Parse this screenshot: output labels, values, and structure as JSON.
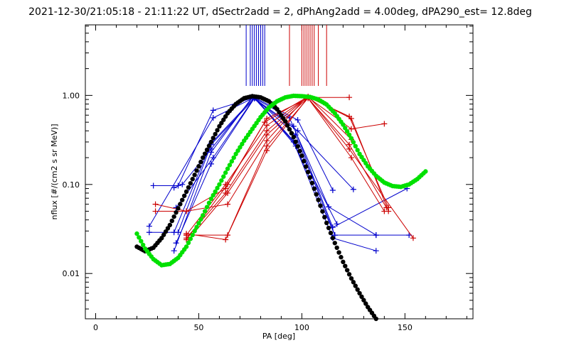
{
  "chart_data": {
    "type": "line",
    "title": "2021-12-30/21:05:18 - 21:11:22 UT, dSectr2add = 2, dPhAng2add = 4.00deg, dPA290_est=  12.8deg",
    "xlabel": "PA [deg]",
    "ylabel": "nflux [#/(cm2 s sr MeV)]",
    "xlim": [
      -5,
      183
    ],
    "ylim": [
      0.0031,
      6.2
    ],
    "yscale": "log",
    "x_ticks": [
      0,
      50,
      100,
      150
    ],
    "x_tick_labels": [
      "0",
      "50",
      "100",
      "150"
    ],
    "y_ticks": [
      0.01,
      0.1,
      1.0
    ],
    "y_tick_labels": [
      "0.01",
      "0.10",
      "1.00"
    ],
    "colors": {
      "blue": "#0000cc",
      "red": "#cc0000",
      "black": "#000000",
      "green": "#00e000"
    },
    "vertical_markers": {
      "blue": [
        73,
        75,
        76,
        77,
        78,
        79,
        80,
        81,
        82
      ],
      "red": [
        94,
        100,
        101,
        102,
        103,
        104,
        105,
        106,
        108,
        112
      ]
    },
    "series": [
      {
        "color": "blue",
        "style": "line+cross",
        "x": [
          26,
          57,
          77,
          98,
          115
        ],
        "y": [
          0.034,
          0.56,
          0.95,
          0.53,
          0.086
        ]
      },
      {
        "color": "blue",
        "style": "line+cross",
        "x": [
          28,
          40,
          57,
          77,
          97,
          117
        ],
        "y": [
          0.097,
          0.097,
          0.68,
          0.95,
          0.29,
          0.036
        ]
      },
      {
        "color": "blue",
        "style": "line+cross",
        "x": [
          26,
          38,
          56,
          77,
          97,
          116
        ],
        "y": [
          0.029,
          0.029,
          0.29,
          0.95,
          0.27,
          0.027
        ]
      },
      {
        "color": "blue",
        "style": "line+cross",
        "x": [
          38,
          42,
          56,
          76,
          98,
          125
        ],
        "y": [
          0.092,
          0.1,
          0.25,
          0.94,
          0.4,
          0.088
        ]
      },
      {
        "color": "blue",
        "style": "line+cross",
        "x": [
          39,
          57,
          77,
          97,
          116,
          136
        ],
        "y": [
          0.055,
          0.2,
          0.94,
          0.36,
          0.027,
          0.027
        ]
      },
      {
        "color": "blue",
        "style": "line+cross",
        "x": [
          39,
          56,
          77,
          96,
          115,
          136
        ],
        "y": [
          0.022,
          0.17,
          0.93,
          0.3,
          0.025,
          0.018
        ]
      },
      {
        "color": "blue",
        "style": "line+cross",
        "x": [
          38,
          56,
          76,
          94,
          113,
          136,
          152
        ],
        "y": [
          0.018,
          0.23,
          0.96,
          0.56,
          0.056,
          0.027,
          0.027
        ]
      },
      {
        "color": "blue",
        "style": "line+cross",
        "x": [
          40,
          56,
          77,
          96,
          115,
          151
        ],
        "y": [
          0.029,
          0.28,
          0.92,
          0.45,
          0.033,
          0.09
        ]
      },
      {
        "color": "red",
        "style": "line+cross",
        "x": [
          29,
          44,
          64,
          83,
          102,
          123
        ],
        "y": [
          0.06,
          0.05,
          0.06,
          0.31,
          0.95,
          0.95
        ]
      },
      {
        "color": "red",
        "style": "line+cross",
        "x": [
          29,
          44,
          63,
          82,
          103,
          124
        ],
        "y": [
          0.05,
          0.05,
          0.09,
          0.5,
          0.97,
          0.32
        ]
      },
      {
        "color": "red",
        "style": "line+cross",
        "x": [
          44,
          64,
          83,
          103,
          123,
          141
        ],
        "y": [
          0.027,
          0.027,
          0.27,
          0.93,
          0.28,
          0.055
        ]
      },
      {
        "color": "red",
        "style": "line+cross",
        "x": [
          44,
          63,
          83,
          103,
          124,
          142
        ],
        "y": [
          0.025,
          0.08,
          0.4,
          0.97,
          0.55,
          0.05
        ]
      },
      {
        "color": "red",
        "style": "line+cross",
        "x": [
          44,
          64,
          83,
          103,
          124,
          140
        ],
        "y": [
          0.024,
          0.1,
          0.55,
          0.93,
          0.2,
          0.05
        ]
      },
      {
        "color": "red",
        "style": "line+cross",
        "x": [
          44,
          63,
          83,
          103,
          124,
          140
        ],
        "y": [
          0.028,
          0.024,
          0.24,
          0.95,
          0.42,
          0.48
        ]
      },
      {
        "color": "red",
        "style": "line+cross",
        "x": [
          45,
          64,
          83,
          103,
          123,
          154
        ],
        "y": [
          0.024,
          0.08,
          0.36,
          0.94,
          0.25,
          0.025
        ]
      },
      {
        "color": "red",
        "style": "line+cross",
        "x": [
          44,
          63,
          83,
          103,
          123,
          142
        ],
        "y": [
          0.027,
          0.1,
          0.46,
          0.96,
          0.58,
          0.055
        ]
      },
      {
        "color": "black",
        "style": "dots",
        "x": [
          20,
          24,
          28,
          32,
          36,
          40,
          44,
          48,
          52,
          56,
          60,
          64,
          68,
          72,
          76,
          80,
          84,
          88,
          92,
          96,
          100,
          104,
          108,
          112,
          116,
          120,
          124,
          128,
          132,
          136
        ],
        "y": [
          0.02,
          0.0178,
          0.0195,
          0.025,
          0.035,
          0.054,
          0.083,
          0.128,
          0.2,
          0.3,
          0.45,
          0.63,
          0.8,
          0.93,
          0.98,
          0.95,
          0.86,
          0.7,
          0.51,
          0.34,
          0.21,
          0.12,
          0.067,
          0.037,
          0.022,
          0.0135,
          0.0088,
          0.006,
          0.0042,
          0.0031
        ]
      },
      {
        "color": "green",
        "style": "dots",
        "x": [
          20,
          24,
          28,
          32,
          36,
          40,
          44,
          48,
          52,
          56,
          60,
          64,
          68,
          72,
          76,
          80,
          84,
          88,
          92,
          96,
          100,
          104,
          108,
          112,
          116,
          120,
          124,
          128,
          132,
          136,
          140,
          144,
          148,
          152,
          156,
          160
        ],
        "y": [
          0.028,
          0.019,
          0.0145,
          0.0124,
          0.0128,
          0.015,
          0.02,
          0.03,
          0.045,
          0.069,
          0.1,
          0.15,
          0.22,
          0.31,
          0.42,
          0.57,
          0.73,
          0.86,
          0.95,
          0.99,
          0.98,
          0.96,
          0.9,
          0.79,
          0.63,
          0.47,
          0.33,
          0.22,
          0.16,
          0.125,
          0.105,
          0.096,
          0.094,
          0.1,
          0.115,
          0.14
        ]
      }
    ]
  }
}
